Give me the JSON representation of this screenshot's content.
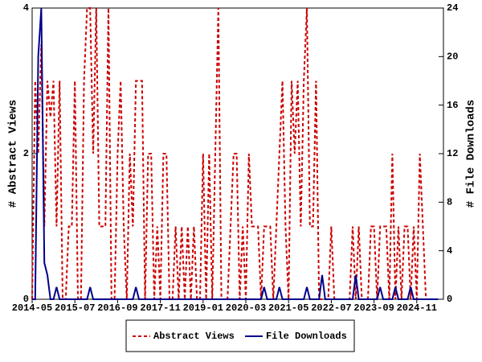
{
  "chart_data": {
    "type": "line",
    "y_label": "# Abstract Views",
    "y2_label": "# File Downloads",
    "x": [
      "2014-05",
      "2014-06",
      "2014-07",
      "2014-08",
      "2014-09",
      "2014-10",
      "2014-11",
      "2014-12",
      "2015-01",
      "2015-02",
      "2015-03",
      "2015-04",
      "2015-05",
      "2015-06",
      "2015-07",
      "2015-08",
      "2015-09",
      "2015-10",
      "2015-11",
      "2015-12",
      "2016-01",
      "2016-02",
      "2016-03",
      "2016-04",
      "2016-05",
      "2016-06",
      "2016-07",
      "2016-08",
      "2016-09",
      "2016-10",
      "2016-11",
      "2016-12",
      "2017-01",
      "2017-02",
      "2017-03",
      "2017-04",
      "2017-05",
      "2017-06",
      "2017-07",
      "2017-08",
      "2017-09",
      "2017-10",
      "2017-11",
      "2017-12",
      "2018-01",
      "2018-02",
      "2018-03",
      "2018-04",
      "2018-05",
      "2018-06",
      "2018-07",
      "2018-08",
      "2018-09",
      "2018-10",
      "2018-11",
      "2018-12",
      "2019-01",
      "2019-02",
      "2019-03",
      "2019-04",
      "2019-05",
      "2019-06",
      "2019-07",
      "2019-08",
      "2019-09",
      "2019-10",
      "2019-11",
      "2019-12",
      "2020-01",
      "2020-02",
      "2020-03",
      "2020-04",
      "2020-05",
      "2020-06",
      "2020-07",
      "2020-08",
      "2020-09",
      "2020-10",
      "2020-11",
      "2020-12",
      "2021-01",
      "2021-02",
      "2021-03",
      "2021-04",
      "2021-05",
      "2021-06",
      "2021-07",
      "2021-08",
      "2021-09",
      "2021-10",
      "2021-11",
      "2021-12",
      "2022-01",
      "2022-02",
      "2022-03",
      "2022-04",
      "2022-05",
      "2022-06",
      "2022-07",
      "2022-08",
      "2022-09",
      "2022-10",
      "2022-11",
      "2022-12",
      "2023-01",
      "2023-02",
      "2023-03",
      "2023-04",
      "2023-05",
      "2023-06",
      "2023-07",
      "2023-08",
      "2023-09",
      "2023-10",
      "2023-11",
      "2023-12",
      "2024-01",
      "2024-02",
      "2024-03",
      "2024-04",
      "2024-05",
      "2024-06",
      "2024-07",
      "2024-08",
      "2024-09",
      "2024-10",
      "2024-11",
      "2024-12",
      "2025-01",
      "2025-02",
      "2025-03",
      "2025-04",
      "2025-05",
      "2025-06"
    ],
    "xticks": [
      "2014-05",
      "2015-07",
      "2016-09",
      "2017-11",
      "2019-01",
      "2020-03",
      "2021-05",
      "2022-07",
      "2023-09",
      "2024-11"
    ],
    "ylim": [
      0,
      4
    ],
    "yticks": [
      0,
      2,
      4
    ],
    "y2lim": [
      0,
      24
    ],
    "y2ticks": [
      0,
      4,
      8,
      12,
      16,
      20,
      24
    ],
    "legend": "bottom",
    "series": [
      {
        "name": "Abstract Views",
        "color": "#cc0000",
        "dash": true,
        "values": [
          0,
          3,
          2,
          3.5,
          1,
          3,
          2.5,
          3,
          1,
          3,
          0,
          0,
          1,
          1,
          3,
          0,
          0,
          3,
          4,
          4,
          2,
          4,
          1,
          1,
          1,
          4,
          0,
          0,
          2,
          3,
          1,
          0,
          2,
          1,
          3,
          3,
          3,
          0,
          2,
          2,
          0,
          1,
          0,
          2,
          2,
          0,
          0,
          1,
          0,
          1,
          0,
          1,
          0,
          1,
          0,
          0,
          2,
          0,
          2,
          0,
          2,
          4,
          0,
          0,
          0,
          1,
          2,
          2,
          0,
          1,
          0,
          2,
          1,
          1,
          1,
          0,
          1,
          1,
          1,
          0,
          1,
          2,
          3,
          1,
          0,
          3,
          2,
          3,
          1,
          3,
          4,
          1,
          1,
          3,
          0,
          0,
          0,
          0,
          1,
          0,
          0,
          0,
          0,
          0,
          0,
          1,
          0,
          1,
          0,
          0,
          0,
          1,
          1,
          0,
          1,
          1,
          1,
          0,
          2,
          0,
          1,
          0,
          1,
          1,
          0,
          1,
          0,
          2,
          1,
          0,
          0,
          0,
          0,
          0
        ]
      },
      {
        "name": "File Downloads",
        "color": "#00008b",
        "axis": "y2",
        "values": [
          0,
          0,
          20,
          24,
          3,
          2,
          0,
          0,
          1,
          0,
          0,
          0,
          0,
          0,
          0,
          0,
          0,
          0,
          0,
          1,
          0,
          0,
          0,
          0,
          0,
          0,
          0,
          0,
          0,
          0,
          0,
          0,
          0,
          0,
          1,
          0,
          0,
          0,
          0,
          0,
          0,
          0,
          0,
          0,
          0,
          0,
          0,
          0,
          0,
          0,
          0,
          0,
          0,
          0,
          0,
          0,
          0,
          0,
          0,
          0,
          0,
          0,
          0,
          0,
          0,
          0,
          0,
          0,
          0,
          0,
          0,
          0,
          0,
          0,
          0,
          0,
          1,
          0,
          0,
          0,
          0,
          1,
          0,
          0,
          0,
          0,
          0,
          0,
          0,
          0,
          1,
          0,
          0,
          0,
          0,
          2,
          0,
          0,
          0,
          0,
          0,
          0,
          0,
          0,
          0,
          0,
          2,
          0,
          0,
          0,
          0,
          0,
          0,
          0,
          1,
          0,
          0,
          0,
          0,
          1,
          0,
          0,
          0,
          0,
          1,
          0,
          0,
          0,
          0,
          0,
          0,
          0,
          0,
          0
        ]
      }
    ]
  }
}
